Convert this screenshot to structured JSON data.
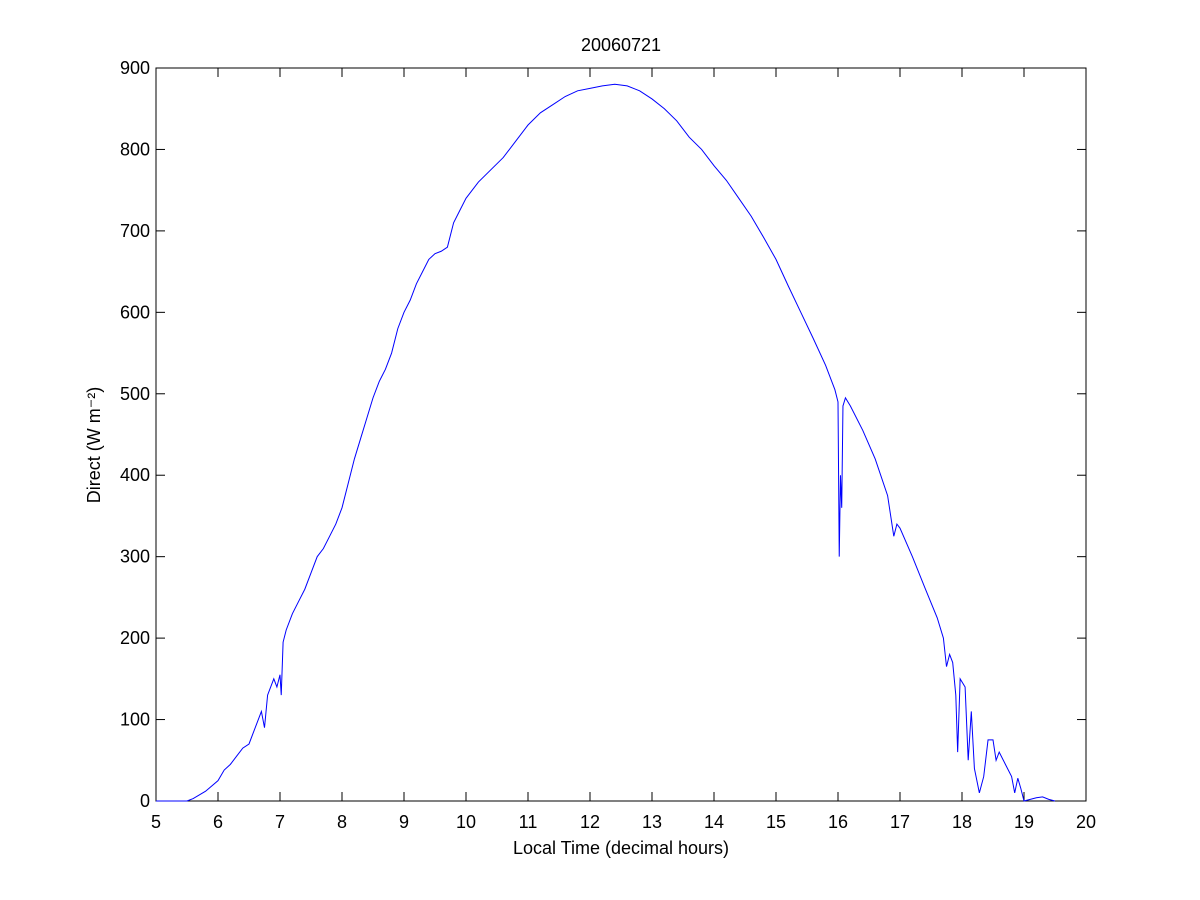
{
  "chart_data": {
    "type": "line",
    "title": "20060721",
    "xlabel": "Local Time (decimal hours)",
    "ylabel": "Direct (W m⁻²)",
    "xlim": [
      5,
      20
    ],
    "xticks": [
      5,
      6,
      7,
      8,
      9,
      10,
      11,
      12,
      13,
      14,
      15,
      16,
      17,
      18,
      19,
      20
    ],
    "ylim": [
      0,
      900
    ],
    "yticks": [
      0,
      100,
      200,
      300,
      400,
      500,
      600,
      700,
      800,
      900
    ],
    "grid": false,
    "series": [
      {
        "color": "#0000ff",
        "x": [
          5.0,
          5.5,
          5.6,
          5.8,
          6.0,
          6.1,
          6.2,
          6.3,
          6.4,
          6.5,
          6.6,
          6.7,
          6.75,
          6.8,
          6.9,
          6.95,
          7.0,
          7.02,
          7.05,
          7.1,
          7.2,
          7.3,
          7.4,
          7.5,
          7.6,
          7.7,
          7.8,
          7.9,
          8.0,
          8.1,
          8.2,
          8.3,
          8.4,
          8.5,
          8.6,
          8.7,
          8.8,
          8.9,
          9.0,
          9.1,
          9.2,
          9.3,
          9.4,
          9.5,
          9.6,
          9.7,
          9.8,
          9.9,
          10.0,
          10.2,
          10.4,
          10.6,
          10.8,
          11.0,
          11.2,
          11.4,
          11.6,
          11.8,
          12.0,
          12.2,
          12.4,
          12.6,
          12.8,
          13.0,
          13.2,
          13.4,
          13.6,
          13.8,
          14.0,
          14.2,
          14.4,
          14.6,
          14.8,
          15.0,
          15.2,
          15.4,
          15.6,
          15.8,
          15.95,
          16.0,
          16.02,
          16.04,
          16.06,
          16.08,
          16.12,
          16.2,
          16.4,
          16.6,
          16.8,
          16.9,
          16.95,
          17.0,
          17.2,
          17.4,
          17.6,
          17.7,
          17.75,
          17.8,
          17.85,
          17.9,
          17.93,
          17.97,
          18.05,
          18.1,
          18.15,
          18.2,
          18.28,
          18.35,
          18.42,
          18.5,
          18.55,
          18.6,
          18.7,
          18.8,
          18.85,
          18.9,
          18.95,
          19.0,
          19.2,
          19.3,
          19.4,
          19.5
        ],
        "values": [
          0,
          0,
          3,
          12,
          25,
          38,
          45,
          55,
          65,
          70,
          90,
          110,
          90,
          130,
          150,
          140,
          155,
          130,
          195,
          210,
          230,
          245,
          260,
          280,
          300,
          310,
          325,
          340,
          360,
          390,
          420,
          445,
          470,
          495,
          515,
          530,
          550,
          580,
          600,
          615,
          635,
          650,
          665,
          672,
          675,
          680,
          710,
          725,
          740,
          760,
          775,
          790,
          810,
          830,
          845,
          855,
          865,
          872,
          875,
          878,
          880,
          878,
          872,
          862,
          850,
          835,
          815,
          800,
          780,
          762,
          740,
          718,
          692,
          665,
          632,
          600,
          568,
          535,
          505,
          490,
          300,
          400,
          360,
          485,
          495,
          485,
          455,
          420,
          375,
          325,
          340,
          335,
          300,
          262,
          225,
          200,
          165,
          180,
          170,
          130,
          60,
          150,
          140,
          50,
          110,
          40,
          10,
          30,
          75,
          75,
          50,
          60,
          45,
          30,
          10,
          28,
          15,
          0,
          4,
          5,
          2,
          0
        ]
      }
    ]
  }
}
